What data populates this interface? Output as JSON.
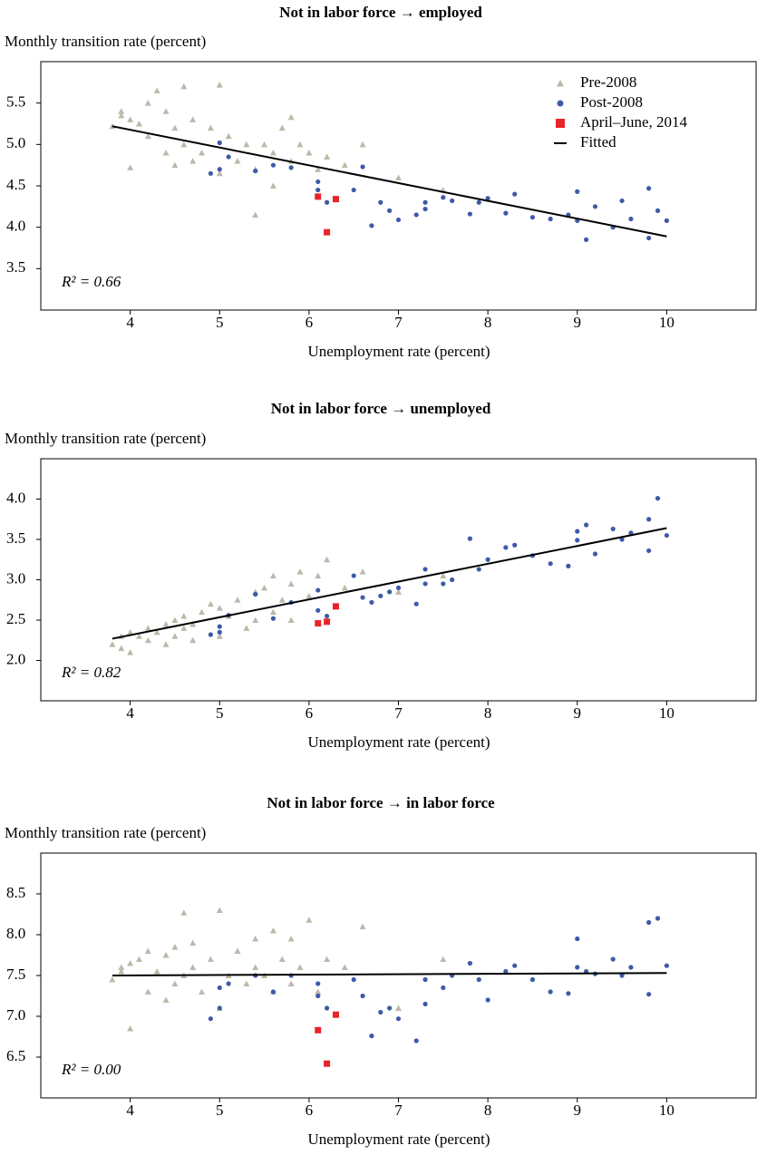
{
  "chart_data": [
    {
      "type": "scatter",
      "title": "Not in labor force → employed",
      "ylabel": "Monthly transition rate (percent)",
      "xlabel": "Unemployment rate (percent)",
      "annotation": "R² = 0.66",
      "legend": "upper right",
      "xlim": [
        3,
        11
      ],
      "xticks": [
        4,
        5,
        6,
        7,
        8,
        9,
        10
      ],
      "ylim": [
        3,
        6
      ],
      "yticks": [
        3.5,
        {
          "value": 4,
          "label": "4.0"
        },
        4.5,
        {
          "value": 5,
          "label": "5.0"
        },
        5.5
      ],
      "series": [
        {
          "name": "Pre-2008",
          "color": "#bdb8a8",
          "marker": "triangle",
          "x": [
            3.8,
            3.9,
            3.9,
            4.0,
            4.0,
            4.1,
            4.2,
            4.2,
            4.3,
            4.4,
            4.4,
            4.5,
            4.5,
            4.6,
            4.6,
            4.7,
            4.7,
            4.8,
            4.9,
            5.0,
            5.0,
            5.1,
            5.2,
            5.3,
            5.4,
            5.4,
            5.5,
            5.6,
            5.6,
            5.7,
            5.8,
            5.8,
            5.9,
            6.0,
            6.1,
            6.2,
            6.4,
            6.6,
            7.0,
            7.5
          ],
          "values": [
            5.22,
            5.4,
            5.35,
            4.72,
            5.3,
            5.25,
            5.5,
            5.1,
            5.65,
            5.4,
            4.9,
            5.2,
            4.75,
            5.7,
            5.0,
            5.3,
            4.8,
            4.9,
            5.2,
            5.72,
            4.65,
            5.1,
            4.8,
            5.0,
            4.7,
            4.15,
            5.0,
            4.5,
            4.9,
            5.2,
            5.33,
            4.8,
            5.0,
            4.9,
            4.7,
            4.85,
            4.75,
            5.0,
            4.6,
            4.45
          ]
        },
        {
          "name": "Post-2008",
          "color": "#3d5aa8",
          "marker": "circle",
          "x": [
            4.9,
            5.0,
            5.0,
            5.1,
            5.4,
            5.6,
            5.8,
            6.1,
            6.1,
            6.2,
            6.5,
            6.6,
            6.7,
            6.8,
            6.9,
            7.0,
            7.2,
            7.3,
            7.3,
            7.5,
            7.6,
            7.8,
            7.9,
            8.0,
            8.2,
            8.3,
            8.5,
            8.7,
            8.9,
            9.0,
            9.0,
            9.1,
            9.2,
            9.4,
            9.5,
            9.6,
            9.8,
            9.8,
            9.9,
            10.0
          ],
          "values": [
            4.65,
            5.02,
            4.7,
            4.85,
            4.68,
            4.75,
            4.72,
            4.55,
            4.45,
            4.3,
            4.45,
            4.73,
            4.02,
            4.3,
            4.2,
            4.09,
            4.15,
            4.3,
            4.22,
            4.36,
            4.32,
            4.16,
            4.3,
            4.35,
            4.17,
            4.4,
            4.12,
            4.1,
            4.15,
            4.43,
            4.08,
            3.85,
            4.25,
            4.0,
            4.32,
            4.1,
            4.47,
            3.87,
            4.2,
            4.08
          ]
        },
        {
          "name": "April–June, 2014",
          "color": "#e8242a",
          "marker": "square",
          "x": [
            6.1,
            6.2,
            6.3
          ],
          "values": [
            4.37,
            3.94,
            4.34
          ]
        },
        {
          "name": "Fitted",
          "color": "#000000",
          "marker": "line",
          "x": [
            3.8,
            10
          ],
          "values": [
            5.22,
            3.89
          ]
        }
      ]
    },
    {
      "type": "scatter",
      "title": "Not in labor force → unemployed",
      "ylabel": "Monthly transition rate (percent)",
      "xlabel": "Unemployment rate (percent)",
      "annotation": "R² = 0.82",
      "xlim": [
        3,
        11
      ],
      "xticks": [
        4,
        5,
        6,
        7,
        8,
        9,
        10
      ],
      "ylim": [
        1.5,
        4.5
      ],
      "yticks": [
        {
          "value": 2,
          "label": "2.0"
        },
        2.5,
        {
          "value": 3,
          "label": "3.0"
        },
        3.5,
        {
          "value": 4,
          "label": "4.0"
        }
      ],
      "series": [
        {
          "color": "#bdb8a8",
          "marker": "triangle",
          "x": [
            3.8,
            3.9,
            3.9,
            4.0,
            4.0,
            4.1,
            4.2,
            4.2,
            4.3,
            4.4,
            4.4,
            4.5,
            4.5,
            4.6,
            4.6,
            4.7,
            4.7,
            4.8,
            4.9,
            5.0,
            5.0,
            5.1,
            5.2,
            5.3,
            5.4,
            5.4,
            5.5,
            5.6,
            5.6,
            5.7,
            5.8,
            5.8,
            5.9,
            6.0,
            6.1,
            6.2,
            6.4,
            6.6,
            7.0,
            7.5
          ],
          "values": [
            2.2,
            2.15,
            2.3,
            2.1,
            2.35,
            2.3,
            2.25,
            2.4,
            2.35,
            2.2,
            2.45,
            2.5,
            2.3,
            2.4,
            2.55,
            2.45,
            2.25,
            2.6,
            2.7,
            2.65,
            2.3,
            2.55,
            2.75,
            2.4,
            2.85,
            2.5,
            2.9,
            3.05,
            2.6,
            2.75,
            2.95,
            2.5,
            3.1,
            2.8,
            3.05,
            3.25,
            2.9,
            3.1,
            2.85,
            3.05
          ]
        },
        {
          "color": "#3d5aa8",
          "marker": "circle",
          "x": [
            4.9,
            5.0,
            5.0,
            5.1,
            5.4,
            5.6,
            5.8,
            6.1,
            6.1,
            6.2,
            6.5,
            6.6,
            6.7,
            6.8,
            6.9,
            7.0,
            7.2,
            7.3,
            7.3,
            7.5,
            7.6,
            7.8,
            7.9,
            8.0,
            8.2,
            8.3,
            8.5,
            8.7,
            8.9,
            9.0,
            9.0,
            9.1,
            9.2,
            9.4,
            9.5,
            9.6,
            9.8,
            9.8,
            9.9,
            10.0
          ],
          "values": [
            2.32,
            2.35,
            2.42,
            2.56,
            2.82,
            2.52,
            2.72,
            2.87,
            2.62,
            2.55,
            3.05,
            2.78,
            2.72,
            2.8,
            2.85,
            2.9,
            2.7,
            3.13,
            2.95,
            2.95,
            3.0,
            3.51,
            3.13,
            3.25,
            3.4,
            3.43,
            3.3,
            3.2,
            3.17,
            3.49,
            3.6,
            3.68,
            3.32,
            3.63,
            3.5,
            3.58,
            3.75,
            3.36,
            4.01,
            3.55
          ]
        },
        {
          "color": "#e8242a",
          "marker": "square",
          "x": [
            6.1,
            6.2,
            6.3
          ],
          "values": [
            2.46,
            2.48,
            2.67
          ]
        },
        {
          "color": "#000000",
          "marker": "line",
          "x": [
            3.8,
            10
          ],
          "values": [
            2.27,
            3.64
          ]
        }
      ]
    },
    {
      "type": "scatter",
      "title": "Not in labor force → in labor force",
      "ylabel": "Monthly transition rate (percent)",
      "xlabel": "Unemployment rate (percent)",
      "annotation": "R² = 0.00",
      "xlim": [
        3,
        11
      ],
      "xticks": [
        4,
        5,
        6,
        7,
        8,
        9,
        10
      ],
      "ylim": [
        6,
        9
      ],
      "yticks": [
        6.5,
        {
          "value": 7,
          "label": "7.0"
        },
        7.5,
        {
          "value": 8,
          "label": "8.0"
        },
        8.5
      ],
      "series": [
        {
          "color": "#bdb8a8",
          "marker": "triangle",
          "x": [
            3.8,
            3.9,
            3.9,
            4.0,
            4.0,
            4.1,
            4.2,
            4.2,
            4.3,
            4.4,
            4.4,
            4.5,
            4.5,
            4.6,
            4.6,
            4.7,
            4.7,
            4.8,
            4.9,
            5.0,
            5.0,
            5.1,
            5.2,
            5.3,
            5.4,
            5.4,
            5.5,
            5.6,
            5.6,
            5.7,
            5.8,
            5.8,
            5.9,
            6.0,
            6.1,
            6.2,
            6.4,
            6.6,
            7.0,
            7.5
          ],
          "values": [
            7.45,
            7.6,
            7.55,
            7.65,
            6.85,
            7.7,
            7.8,
            7.3,
            7.55,
            7.75,
            7.2,
            7.85,
            7.4,
            8.27,
            7.5,
            7.6,
            7.9,
            7.3,
            7.7,
            8.3,
            7.1,
            7.5,
            7.8,
            7.4,
            7.6,
            7.95,
            7.5,
            8.05,
            7.3,
            7.7,
            7.95,
            7.4,
            7.6,
            8.18,
            7.3,
            7.7,
            7.6,
            8.1,
            7.1,
            7.7
          ]
        },
        {
          "color": "#3d5aa8",
          "marker": "circle",
          "x": [
            4.9,
            5.0,
            5.0,
            5.1,
            5.4,
            5.6,
            5.8,
            6.1,
            6.1,
            6.2,
            6.5,
            6.6,
            6.7,
            6.8,
            6.9,
            7.0,
            7.2,
            7.3,
            7.3,
            7.5,
            7.6,
            7.8,
            7.9,
            8.0,
            8.2,
            8.3,
            8.5,
            8.7,
            8.9,
            9.0,
            9.0,
            9.1,
            9.2,
            9.4,
            9.5,
            9.6,
            9.8,
            9.8,
            9.9,
            10.0
          ],
          "values": [
            6.97,
            7.1,
            7.35,
            7.4,
            7.5,
            7.3,
            7.5,
            7.25,
            7.4,
            7.1,
            7.45,
            7.25,
            6.76,
            7.05,
            7.1,
            6.97,
            6.7,
            7.45,
            7.15,
            7.35,
            7.5,
            7.65,
            7.45,
            7.2,
            7.55,
            7.62,
            7.45,
            7.3,
            7.28,
            7.95,
            7.6,
            7.55,
            7.52,
            7.7,
            7.5,
            7.6,
            8.15,
            7.27,
            8.2,
            7.62
          ]
        },
        {
          "color": "#e8242a",
          "marker": "square",
          "x": [
            6.1,
            6.2,
            6.3
          ],
          "values": [
            6.83,
            6.42,
            7.02
          ]
        },
        {
          "color": "#000000",
          "marker": "line",
          "x": [
            3.8,
            10
          ],
          "values": [
            7.5,
            7.53
          ]
        }
      ]
    }
  ]
}
